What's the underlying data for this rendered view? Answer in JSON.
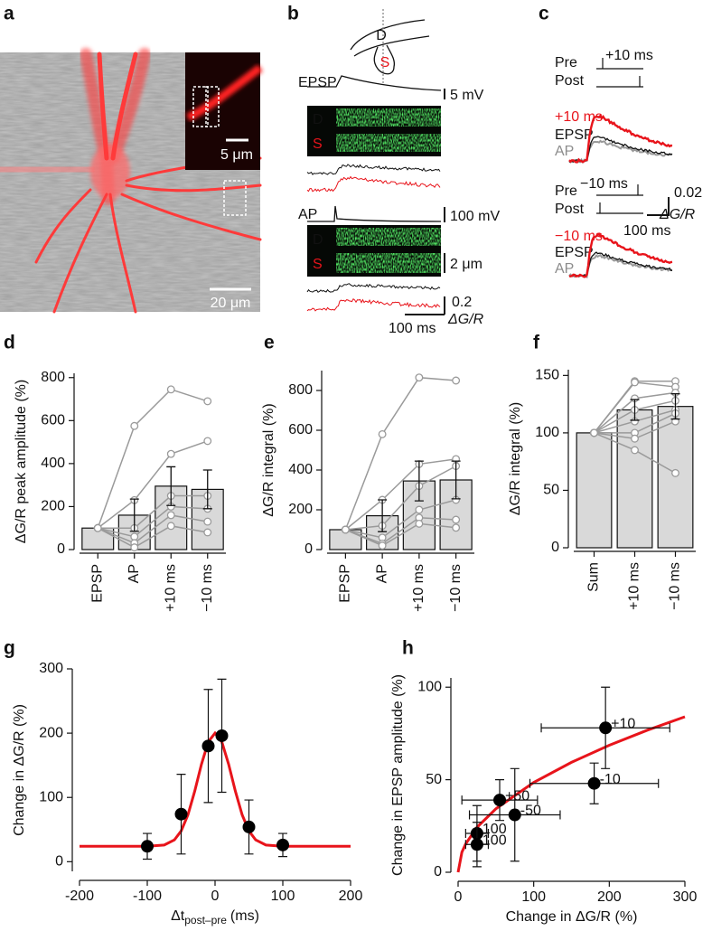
{
  "panels": {
    "a": {
      "label": "a",
      "scale_inset": "5 μm",
      "scale_main": "20 μm"
    },
    "b": {
      "label": "b",
      "schematic_d": "D",
      "schematic_s": "S",
      "epsp": "EPSP",
      "epsp_scale": "5 mV",
      "dend_1": "D",
      "spine_1": "S",
      "ap": "AP",
      "ap_scale": "100 mV",
      "dend_2": "D",
      "spine_2": "S",
      "space_scale": "2 μm",
      "signal_scale": "0.2",
      "signal_unit": "ΔG/R",
      "time_scale": "100 ms"
    },
    "c": {
      "label": "c",
      "pre_1": "Pre",
      "pre_1_delay": "+10 ms",
      "post_1": "Post",
      "cond_1": "+10 ms",
      "epsp_1": "EPSP",
      "ap_1": "AP",
      "pre_2": "Pre",
      "pre_2_delay": "−10 ms",
      "post_2": "Post",
      "signal_scale": "0.02",
      "signal_unit": "ΔG/R",
      "time_scale": "100 ms",
      "cond_2": "−10 ms",
      "epsp_2": "EPSP",
      "ap_2": "AP"
    }
  },
  "chart_data": [
    {
      "type": "bar",
      "label": "d",
      "ylabel": "ΔG/R peak amplitude (%)",
      "categories": [
        "EPSP",
        "AP",
        "+10 ms",
        "−10 ms"
      ],
      "values": [
        100,
        160,
        295,
        280
      ],
      "errors": [
        null,
        75,
        90,
        90
      ],
      "color": "#d9d9d9",
      "cell_color": "#9a9a9a",
      "ylim": [
        0,
        820
      ],
      "yticks": [
        0,
        200,
        400,
        600,
        800
      ],
      "series": [
        {
          "values": [
            100,
            575,
            745,
            690
          ]
        },
        {
          "values": [
            100,
            230,
            445,
            505
          ]
        },
        {
          "values": [
            100,
            100,
            250,
            250
          ]
        },
        {
          "values": [
            100,
            60,
            200,
            190
          ]
        },
        {
          "values": [
            100,
            30,
            160,
            130
          ]
        },
        {
          "values": [
            100,
            10,
            110,
            80
          ]
        }
      ]
    },
    {
      "type": "bar",
      "label": "e",
      "ylabel": "ΔG/R integral (%)",
      "categories": [
        "EPSP",
        "AP",
        "+10 ms",
        "−10 ms"
      ],
      "values": [
        100,
        170,
        345,
        350
      ],
      "errors": [
        null,
        80,
        100,
        95
      ],
      "color": "#d9d9d9",
      "cell_color": "#9a9a9a",
      "ylim": [
        0,
        900
      ],
      "yticks": [
        0,
        200,
        400,
        600,
        800
      ],
      "series": [
        {
          "values": [
            100,
            580,
            865,
            850
          ]
        },
        {
          "values": [
            100,
            250,
            430,
            455
          ]
        },
        {
          "values": [
            100,
            120,
            320,
            420
          ]
        },
        {
          "values": [
            100,
            60,
            200,
            250
          ]
        },
        {
          "values": [
            100,
            30,
            160,
            150
          ]
        },
        {
          "values": [
            100,
            20,
            130,
            110
          ]
        }
      ]
    },
    {
      "type": "bar",
      "label": "f",
      "ylabel": "ΔG/R integral (%)",
      "categories": [
        "Sum",
        "+10 ms",
        "−10 ms"
      ],
      "values": [
        100,
        120,
        123
      ],
      "errors": [
        null,
        9,
        11
      ],
      "color": "#d9d9d9",
      "cell_color": "#9a9a9a",
      "ylim": [
        0,
        155
      ],
      "yticks": [
        0,
        50,
        100,
        150
      ],
      "series": [
        {
          "values": [
            100,
            145,
            145
          ]
        },
        {
          "values": [
            100,
            144,
            140
          ]
        },
        {
          "values": [
            100,
            130,
            135
          ]
        },
        {
          "values": [
            100,
            120,
            128
          ]
        },
        {
          "values": [
            100,
            110,
            120
          ]
        },
        {
          "values": [
            100,
            100,
            117
          ]
        },
        {
          "values": [
            100,
            95,
            110
          ]
        },
        {
          "values": [
            100,
            85,
            65
          ]
        }
      ]
    },
    {
      "type": "scatter",
      "label": "g",
      "ylabel": "Change in ΔG/R (%)",
      "xlabel": "Δt",
      "xlabel_subscript": "post–pre",
      "xlabel_unit": "(ms)",
      "x": [
        -100,
        -50,
        -10,
        10,
        50,
        100
      ],
      "values": [
        24,
        74,
        180,
        196,
        54,
        26
      ],
      "errors": [
        20,
        62,
        88,
        88,
        42,
        18
      ],
      "color": "#000000",
      "xlim": [
        -200,
        200
      ],
      "xticks": [
        -200,
        -100,
        0,
        100,
        200
      ],
      "ylim": [
        -15,
        300
      ],
      "yticks": [
        0,
        100,
        200,
        300
      ],
      "fit": {
        "color": "#e8141b",
        "x": [
          -200,
          -100,
          -75,
          -60,
          -50,
          -40,
          -30,
          -20,
          -10,
          0,
          10,
          20,
          30,
          40,
          50,
          60,
          75,
          100,
          200
        ],
        "values": [
          24,
          24,
          26,
          33.9,
          47.8,
          72.9,
          109.7,
          151.8,
          186.5,
          200,
          186.5,
          151.8,
          109.7,
          72.9,
          47.8,
          33.9,
          26,
          24,
          24
        ]
      }
    },
    {
      "type": "scatter",
      "label": "h",
      "ylabel": "Change in EPSP amplitude (%)",
      "xlabel": "Change in ΔG/R (%)",
      "x": [
        25,
        25,
        55,
        75,
        180,
        195
      ],
      "x_errors": [
        15,
        15,
        50,
        60,
        85,
        85
      ],
      "values": [
        21,
        15,
        39,
        31,
        48,
        78
      ],
      "errors": [
        15,
        12,
        11,
        25,
        11,
        22
      ],
      "point_labels": [
        "100",
        "100",
        "+50",
        "-50",
        "-10",
        "+10"
      ],
      "point_label_color": "#e8141b",
      "color": "#000000",
      "xlim": [
        0,
        300
      ],
      "xticks": [
        0,
        100,
        200,
        300
      ],
      "ylim": [
        0,
        105
      ],
      "yticks": [
        0,
        50,
        100
      ],
      "fit": {
        "color": "#e8141b",
        "x": [
          0,
          5,
          10,
          25,
          50,
          100,
          150,
          200,
          250,
          300
        ],
        "values": [
          0,
          10.8,
          15.3,
          24.3,
          34.3,
          48.5,
          59.4,
          68.6,
          76.7,
          84
        ]
      }
    }
  ]
}
